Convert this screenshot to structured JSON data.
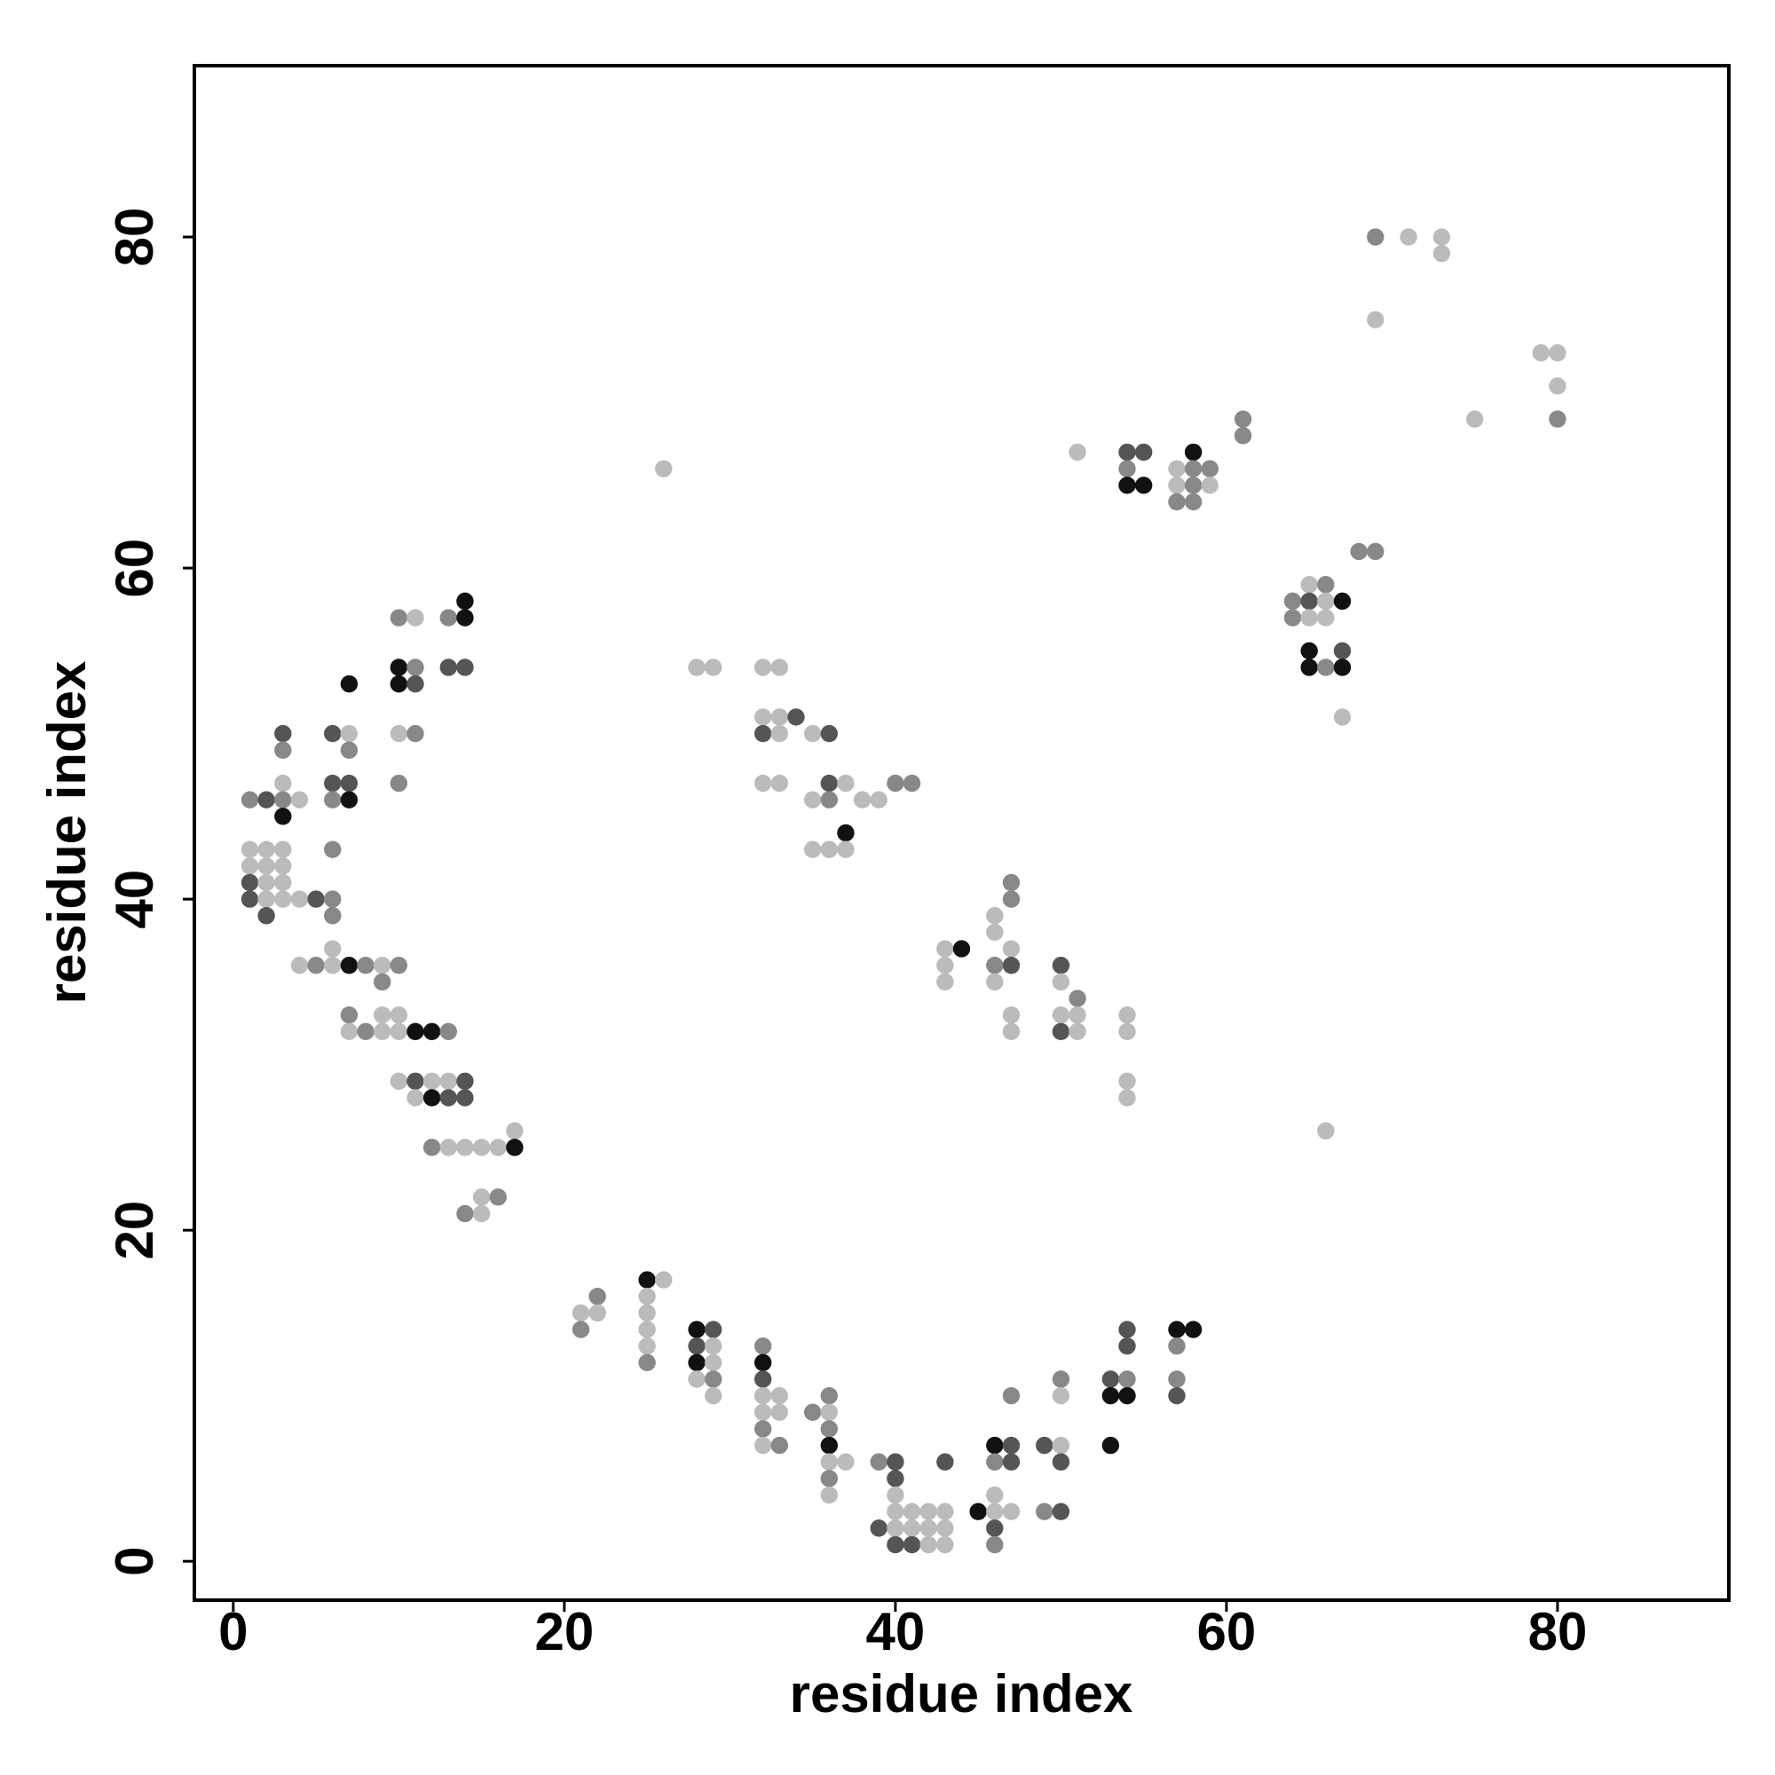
{
  "chart_data": {
    "type": "scatter",
    "xlabel": "residue index",
    "ylabel": "residue index",
    "xlim": [
      -2.35,
      90.35
    ],
    "ylim": [
      -2.35,
      90.35
    ],
    "xticks": [
      0,
      20,
      40,
      60,
      80
    ],
    "yticks": [
      0,
      20,
      40,
      60,
      80
    ],
    "x": [
      1,
      1,
      1,
      1,
      1,
      2,
      2,
      2,
      2,
      2,
      2,
      3,
      3,
      3,
      3,
      3,
      3,
      3,
      3,
      3,
      4,
      4,
      4,
      5,
      5,
      6,
      6,
      6,
      6,
      6,
      6,
      6,
      6,
      7,
      7,
      7,
      7,
      7,
      7,
      7,
      7,
      8,
      8,
      9,
      9,
      9,
      9,
      10,
      10,
      10,
      10,
      10,
      10,
      10,
      10,
      10,
      11,
      11,
      11,
      11,
      11,
      11,
      11,
      12,
      12,
      12,
      12,
      13,
      13,
      13,
      13,
      13,
      13,
      14,
      14,
      14,
      14,
      14,
      14,
      14,
      15,
      15,
      15,
      16,
      16,
      17,
      17,
      21,
      21,
      22,
      22,
      25,
      25,
      25,
      25,
      25,
      25,
      26,
      26,
      28,
      28,
      28,
      28,
      28,
      29,
      29,
      29,
      29,
      29,
      29,
      32,
      32,
      32,
      32,
      32,
      32,
      32,
      32,
      32,
      32,
      32,
      33,
      33,
      33,
      33,
      33,
      33,
      33,
      34,
      35,
      35,
      35,
      35,
      36,
      36,
      36,
      36,
      36,
      36,
      36,
      36,
      36,
      36,
      36,
      37,
      37,
      37,
      37,
      38,
      39,
      39,
      39,
      40,
      40,
      40,
      40,
      40,
      40,
      40,
      41,
      41,
      41,
      41,
      42,
      42,
      42,
      43,
      43,
      43,
      43,
      43,
      43,
      43,
      44,
      45,
      46,
      46,
      46,
      46,
      46,
      46,
      46,
      46,
      46,
      46,
      47,
      47,
      47,
      47,
      47,
      47,
      47,
      47,
      47,
      47,
      49,
      49,
      50,
      50,
      50,
      50,
      50,
      50,
      50,
      50,
      50,
      51,
      51,
      51,
      51,
      53,
      53,
      53,
      54,
      54,
      54,
      54,
      54,
      54,
      54,
      54,
      54,
      54,
      54,
      55,
      55,
      57,
      57,
      57,
      57,
      57,
      57,
      57,
      58,
      58,
      58,
      58,
      58,
      59,
      59,
      61,
      61,
      64,
      64,
      65,
      65,
      65,
      65,
      65,
      66,
      66,
      66,
      66,
      66,
      67,
      67,
      67,
      67,
      68,
      69,
      69,
      69,
      71,
      73,
      73,
      75,
      79,
      80,
      80,
      80
    ],
    "y": [
      46,
      43,
      42,
      41,
      40,
      46,
      43,
      42,
      41,
      40,
      39,
      50,
      49,
      47,
      46,
      45,
      43,
      42,
      41,
      40,
      46,
      40,
      36,
      40,
      36,
      50,
      47,
      46,
      43,
      40,
      39,
      37,
      36,
      53,
      50,
      49,
      47,
      46,
      36,
      33,
      32,
      36,
      32,
      36,
      35,
      33,
      32,
      57,
      54,
      53,
      50,
      47,
      36,
      33,
      32,
      29,
      57,
      54,
      53,
      50,
      32,
      29,
      28,
      32,
      29,
      28,
      25,
      57,
      54,
      32,
      29,
      28,
      25,
      58,
      57,
      54,
      29,
      28,
      25,
      21,
      25,
      22,
      21,
      25,
      22,
      26,
      25,
      15,
      14,
      16,
      15,
      17,
      16,
      15,
      14,
      13,
      12,
      66,
      17,
      54,
      14,
      13,
      12,
      11,
      54,
      14,
      13,
      12,
      11,
      10,
      54,
      51,
      50,
      47,
      13,
      12,
      11,
      10,
      9,
      8,
      7,
      54,
      51,
      50,
      47,
      10,
      9,
      7,
      51,
      50,
      46,
      43,
      9,
      50,
      47,
      46,
      43,
      10,
      9,
      8,
      7,
      6,
      5,
      4,
      47,
      44,
      43,
      6,
      46,
      46,
      6,
      2,
      47,
      6,
      5,
      4,
      3,
      2,
      1,
      47,
      3,
      2,
      1,
      3,
      2,
      1,
      37,
      36,
      35,
      6,
      3,
      2,
      1,
      37,
      3,
      39,
      38,
      36,
      35,
      7,
      6,
      4,
      3,
      2,
      1,
      41,
      40,
      37,
      36,
      33,
      32,
      10,
      7,
      6,
      3,
      7,
      3,
      36,
      35,
      33,
      32,
      11,
      10,
      7,
      6,
      3,
      67,
      34,
      33,
      32,
      11,
      10,
      7,
      67,
      66,
      65,
      33,
      32,
      29,
      28,
      14,
      13,
      11,
      10,
      67,
      65,
      66,
      65,
      64,
      14,
      13,
      11,
      10,
      67,
      66,
      65,
      64,
      14,
      66,
      65,
      69,
      68,
      58,
      57,
      59,
      58,
      57,
      55,
      54,
      59,
      58,
      57,
      54,
      26,
      58,
      55,
      54,
      51,
      61,
      80,
      75,
      61,
      80,
      80,
      79,
      69,
      73,
      73,
      71,
      69
    ],
    "colors": [
      "#888",
      "#bbb",
      "#bbb",
      "#555",
      "#555",
      "#555",
      "#bbb",
      "#bbb",
      "#bbb",
      "#bbb",
      "#555",
      "#555",
      "#888",
      "#bbb",
      "#888",
      "#111",
      "#bbb",
      "#bbb",
      "#bbb",
      "#bbb",
      "#bbb",
      "#bbb",
      "#bbb",
      "#555",
      "#888",
      "#555",
      "#555",
      "#888",
      "#888",
      "#888",
      "#888",
      "#bbb",
      "#bbb",
      "#111",
      "#bbb",
      "#888",
      "#555",
      "#111",
      "#111",
      "#888",
      "#bbb",
      "#888",
      "#888",
      "#bbb",
      "#888",
      "#bbb",
      "#bbb",
      "#888",
      "#111",
      "#111",
      "#bbb",
      "#888",
      "#888",
      "#bbb",
      "#bbb",
      "#bbb",
      "#bbb",
      "#888",
      "#555",
      "#888",
      "#111",
      "#555",
      "#bbb",
      "#111",
      "#bbb",
      "#111",
      "#888",
      "#888",
      "#555",
      "#888",
      "#bbb",
      "#555",
      "#bbb",
      "#111",
      "#111",
      "#555",
      "#555",
      "#555",
      "#bbb",
      "#888",
      "#bbb",
      "#bbb",
      "#bbb",
      "#bbb",
      "#888",
      "#bbb",
      "#111",
      "#bbb",
      "#888",
      "#888",
      "#bbb",
      "#111",
      "#bbb",
      "#bbb",
      "#bbb",
      "#bbb",
      "#888",
      "#bbb",
      "#bbb",
      "#bbb",
      "#111",
      "#555",
      "#111",
      "#bbb",
      "#bbb",
      "#555",
      "#bbb",
      "#bbb",
      "#888",
      "#bbb",
      "#bbb",
      "#bbb",
      "#555",
      "#bbb",
      "#888",
      "#111",
      "#555",
      "#bbb",
      "#bbb",
      "#888",
      "#bbb",
      "#bbb",
      "#bbb",
      "#bbb",
      "#bbb",
      "#bbb",
      "#bbb",
      "#888",
      "#555",
      "#bbb",
      "#bbb",
      "#bbb",
      "#888",
      "#555",
      "#555",
      "#888",
      "#bbb",
      "#888",
      "#bbb",
      "#888",
      "#111",
      "#bbb",
      "#888",
      "#bbb",
      "#bbb",
      "#111",
      "#bbb",
      "#bbb",
      "#bbb",
      "#bbb",
      "#888",
      "#555",
      "#888",
      "#555",
      "#555",
      "#bbb",
      "#bbb",
      "#bbb",
      "#555",
      "#888",
      "#bbb",
      "#bbb",
      "#555",
      "#bbb",
      "#bbb",
      "#bbb",
      "#bbb",
      "#bbb",
      "#bbb",
      "#555",
      "#bbb",
      "#bbb",
      "#bbb",
      "#111",
      "#111",
      "#bbb",
      "#bbb",
      "#888",
      "#bbb",
      "#111",
      "#888",
      "#bbb",
      "#bbb",
      "#555",
      "#888",
      "#888",
      "#888",
      "#bbb",
      "#555",
      "#bbb",
      "#bbb",
      "#888",
      "#555",
      "#555",
      "#bbb",
      "#555",
      "#888",
      "#555",
      "#bbb",
      "#bbb",
      "#555",
      "#888",
      "#bbb",
      "#bbb",
      "#555",
      "#555",
      "#bbb",
      "#888",
      "#bbb",
      "#bbb",
      "#555",
      "#111",
      "#111",
      "#555",
      "#888",
      "#111",
      "#bbb",
      "#bbb",
      "#bbb",
      "#bbb",
      "#555",
      "#555",
      "#888",
      "#111",
      "#555",
      "#111",
      "#bbb",
      "#bbb",
      "#888",
      "#111",
      "#888",
      "#888",
      "#555",
      "#111",
      "#888",
      "#888",
      "#888",
      "#111",
      "#888",
      "#bbb",
      "#888",
      "#888",
      "#888",
      "#888",
      "#bbb",
      "#555",
      "#bbb",
      "#111",
      "#111",
      "#888",
      "#bbb",
      "#bbb",
      "#888",
      "#bbb",
      "#111",
      "#555",
      "#111",
      "#bbb",
      "#888",
      "#888",
      "#bbb",
      "#888",
      "#bbb",
      "#bbb",
      "#bbb",
      "#bbb",
      "#bbb",
      "#bbb",
      "#bbb",
      "#888"
    ]
  }
}
